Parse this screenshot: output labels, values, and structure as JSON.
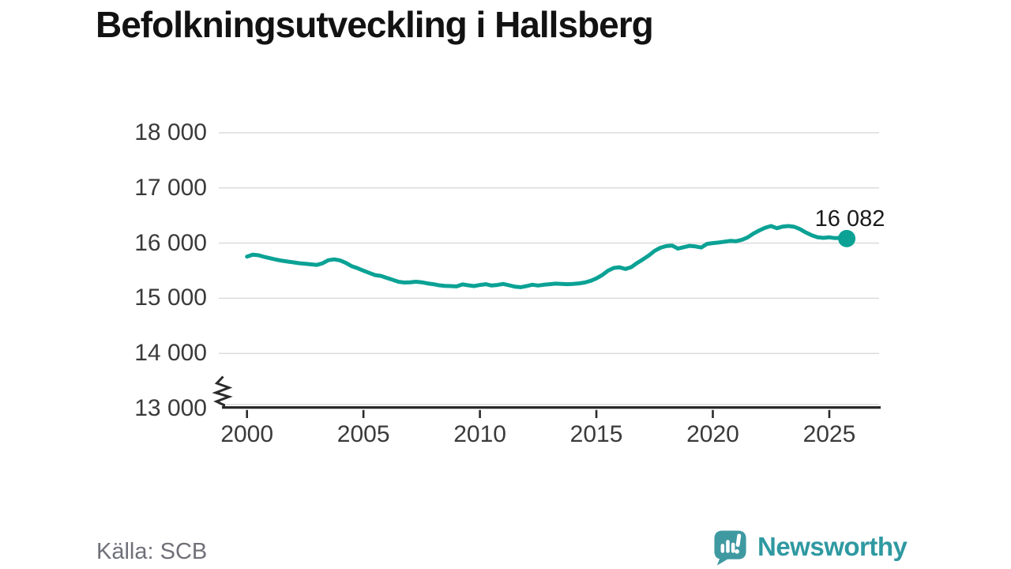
{
  "title": "Befolkningsutveckling i Hallsberg",
  "footer": {
    "source": "Källa: SCB",
    "brand_name": "Newsworthy"
  },
  "colors": {
    "line": "#0ba295",
    "grid": "#dcdcdc",
    "axis": "#2b2b2b",
    "tick_text": "#3a3a3a",
    "title_text": "#121212",
    "muted_text": "#70707a",
    "brand_teal": "#2f99a1",
    "background": "#ffffff"
  },
  "chart_data": {
    "type": "line",
    "title": "Befolkningsutveckling i Hallsberg",
    "source": "Källa: SCB",
    "xlabel": "",
    "ylabel": "",
    "grid": "horizontal",
    "y_axis_break": true,
    "ylim": [
      13000,
      18000
    ],
    "xlim": [
      1998.8,
      2027.2
    ],
    "y_ticks": [
      18000,
      17000,
      16000,
      15000,
      14000,
      13000
    ],
    "y_tick_labels": [
      "18 000",
      "17 000",
      "16 000",
      "15 000",
      "14 000",
      "13 000"
    ],
    "x_ticks": [
      2000,
      2005,
      2010,
      2015,
      2020,
      2025
    ],
    "x_tick_labels": [
      "2000",
      "2005",
      "2010",
      "2015",
      "2020",
      "2025"
    ],
    "series": [
      {
        "name": "Befolkning i Hallsberg",
        "color": "#0ba295",
        "x_start": 2000.0,
        "x_step": 0.25,
        "values": [
          15755,
          15790,
          15780,
          15750,
          15725,
          15700,
          15680,
          15665,
          15650,
          15635,
          15625,
          15615,
          15605,
          15635,
          15690,
          15705,
          15685,
          15640,
          15580,
          15545,
          15500,
          15460,
          15420,
          15405,
          15370,
          15335,
          15300,
          15285,
          15290,
          15300,
          15290,
          15270,
          15255,
          15235,
          15225,
          15220,
          15215,
          15250,
          15235,
          15220,
          15240,
          15255,
          15230,
          15240,
          15260,
          15235,
          15210,
          15200,
          15220,
          15245,
          15230,
          15245,
          15255,
          15265,
          15260,
          15255,
          15260,
          15270,
          15285,
          15315,
          15360,
          15420,
          15500,
          15550,
          15560,
          15530,
          15565,
          15640,
          15705,
          15775,
          15860,
          15915,
          15945,
          15955,
          15900,
          15925,
          15950,
          15940,
          15920,
          15985,
          16000,
          16010,
          16025,
          16040,
          16035,
          16060,
          16105,
          16175,
          16230,
          16280,
          16310,
          16270,
          16300,
          16310,
          16295,
          16250,
          16190,
          16140,
          16105,
          16095,
          16105,
          16090,
          16095,
          16082
        ]
      }
    ],
    "end_point": {
      "x": 2025.75,
      "value": 16082,
      "label": "16 082"
    }
  }
}
